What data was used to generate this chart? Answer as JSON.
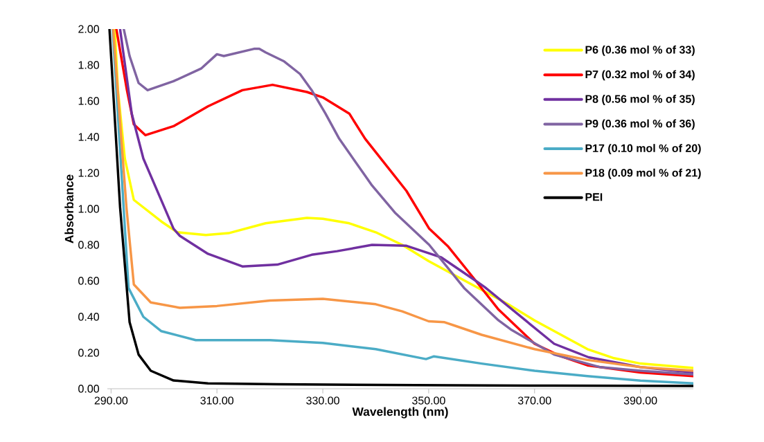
{
  "chart_data": {
    "type": "line",
    "xlabel": "Wavelength (nm)",
    "ylabel": "Absorbance",
    "xlim": [
      289.3,
      400
    ],
    "ylim": [
      0,
      2
    ],
    "xticks": [
      {
        "value": 290,
        "label": "290.00"
      },
      {
        "value": 310,
        "label": "310.00"
      },
      {
        "value": 330,
        "label": "330.00"
      },
      {
        "value": 350,
        "label": "350.00"
      },
      {
        "value": 370,
        "label": "370.00"
      },
      {
        "value": 390,
        "label": "390.00"
      }
    ],
    "yticks": [
      {
        "value": 0,
        "label": "0.00"
      },
      {
        "value": 0.2,
        "label": "0.20"
      },
      {
        "value": 0.4,
        "label": "0.40"
      },
      {
        "value": 0.6,
        "label": "0.60"
      },
      {
        "value": 0.8,
        "label": "0.80"
      },
      {
        "value": 1.0,
        "label": "1.00"
      },
      {
        "value": 1.2,
        "label": "1.20"
      },
      {
        "value": 1.4,
        "label": "1.40"
      },
      {
        "value": 1.6,
        "label": "1.60"
      },
      {
        "value": 1.8,
        "label": "1.80"
      },
      {
        "value": 2.0,
        "label": "2.00"
      }
    ],
    "legend": "top right",
    "line_style": "solid",
    "series": [
      {
        "name": "P6 (0.36 mol % of 33)",
        "color": "#ffff00",
        "x": [
          290.7,
          291.3,
          292.6,
          294.3,
          299.5,
          302.5,
          307.9,
          312.2,
          319.2,
          327,
          330,
          335,
          340,
          345,
          350,
          355,
          360,
          365,
          370,
          375,
          380,
          385,
          390,
          400
        ],
        "values": [
          2.0,
          1.66,
          1.28,
          1.05,
          0.93,
          0.87,
          0.855,
          0.865,
          0.92,
          0.95,
          0.945,
          0.92,
          0.87,
          0.8,
          0.71,
          0.63,
          0.55,
          0.47,
          0.38,
          0.3,
          0.22,
          0.17,
          0.14,
          0.115
        ]
      },
      {
        "name": "P7 (0.32 mol % of 34)",
        "color": "#ff0000",
        "x": [
          291,
          293,
          294.3,
          296.5,
          301.8,
          308.3,
          314.8,
          320.5,
          327,
          330,
          335,
          338,
          345.8,
          350.1,
          353.7,
          358.9,
          363.2,
          370,
          375,
          380,
          390,
          400
        ],
        "values": [
          2.0,
          1.66,
          1.47,
          1.41,
          1.46,
          1.57,
          1.66,
          1.69,
          1.65,
          1.62,
          1.53,
          1.39,
          1.1,
          0.89,
          0.79,
          0.6,
          0.44,
          0.25,
          0.18,
          0.13,
          0.09,
          0.07
        ]
      },
      {
        "name": "P8 (0.56 mol % of 35)",
        "color": "#7030a0",
        "x": [
          291.7,
          293.9,
          296.1,
          301.8,
          303,
          308.3,
          314.8,
          321.4,
          327.9,
          332.7,
          339.3,
          345.8,
          352.4,
          358.9,
          360.6,
          373.7,
          380.2,
          390,
          400
        ],
        "values": [
          2.0,
          1.53,
          1.28,
          0.89,
          0.85,
          0.75,
          0.68,
          0.69,
          0.745,
          0.765,
          0.8,
          0.795,
          0.73,
          0.6,
          0.565,
          0.25,
          0.175,
          0.12,
          0.09
        ]
      },
      {
        "name": "P9 (0.36 mol % of 36)",
        "color": "#8064a2",
        "x": [
          292.4,
          293.5,
          295.2,
          296.9,
          301.8,
          307,
          310,
          311.3,
          317,
          318,
          319.2,
          322.7,
          325.7,
          327.9,
          330.5,
          333.1,
          339.3,
          343.6,
          350.1,
          356.7,
          363.2,
          365.5,
          373.7,
          382.4,
          390,
          400
        ],
        "values": [
          2.0,
          1.85,
          1.7,
          1.66,
          1.71,
          1.78,
          1.86,
          1.85,
          1.89,
          1.89,
          1.87,
          1.82,
          1.75,
          1.66,
          1.53,
          1.39,
          1.13,
          0.98,
          0.8,
          0.56,
          0.38,
          0.33,
          0.19,
          0.12,
          0.1,
          0.08
        ]
      },
      {
        "name": "P17 (0.10 mol % of 20)",
        "color": "#4bacc6",
        "x": [
          290.3,
          293.3,
          296.1,
          299.5,
          306,
          310,
          320,
          330,
          340,
          349.5,
          351,
          360,
          370,
          380,
          390,
          400
        ],
        "values": [
          2.0,
          0.56,
          0.4,
          0.32,
          0.27,
          0.27,
          0.27,
          0.255,
          0.22,
          0.165,
          0.18,
          0.14,
          0.1,
          0.07,
          0.045,
          0.03
        ]
      },
      {
        "name": "P18 (0.09 mol % of 21)",
        "color": "#f79646",
        "x": [
          290.4,
          292.9,
          294.3,
          297.5,
          303,
          310,
          320,
          330,
          340,
          345,
          350,
          353,
          355,
          360,
          370,
          380,
          390,
          400
        ],
        "values": [
          2.0,
          1.01,
          0.58,
          0.48,
          0.45,
          0.46,
          0.49,
          0.5,
          0.47,
          0.43,
          0.375,
          0.37,
          0.35,
          0.3,
          0.22,
          0.16,
          0.12,
          0.1
        ]
      },
      {
        "name": "PEI",
        "color": "#000000",
        "x": [
          289.7,
          291.7,
          293.5,
          295.2,
          297.5,
          301.8,
          308.3,
          321.4,
          347.5,
          373.7,
          400
        ],
        "values": [
          2.0,
          1.01,
          0.37,
          0.19,
          0.1,
          0.046,
          0.03,
          0.025,
          0.02,
          0.017,
          0.015
        ]
      }
    ]
  }
}
